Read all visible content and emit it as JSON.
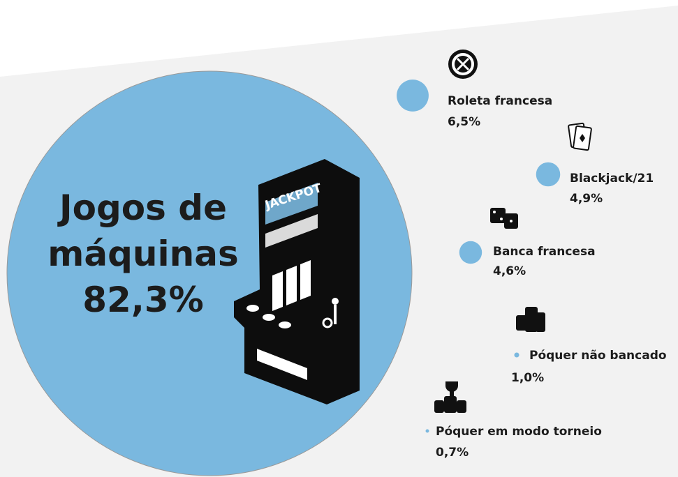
{
  "chart_data": {
    "type": "bubble",
    "categories": [
      "Jogos de máquinas",
      "Roleta francesa",
      "Blackjack/21",
      "Banca francesa",
      "Póquer não bancado",
      "Póquer em modo torneio"
    ],
    "values": [
      82.3,
      6.5,
      4.9,
      4.6,
      1.0,
      0.7
    ],
    "value_labels": [
      "82,3%",
      "6,5%",
      "4,9%",
      "4,6%",
      "1,0%",
      "0,7%"
    ],
    "color": "#7ab8df"
  }
}
